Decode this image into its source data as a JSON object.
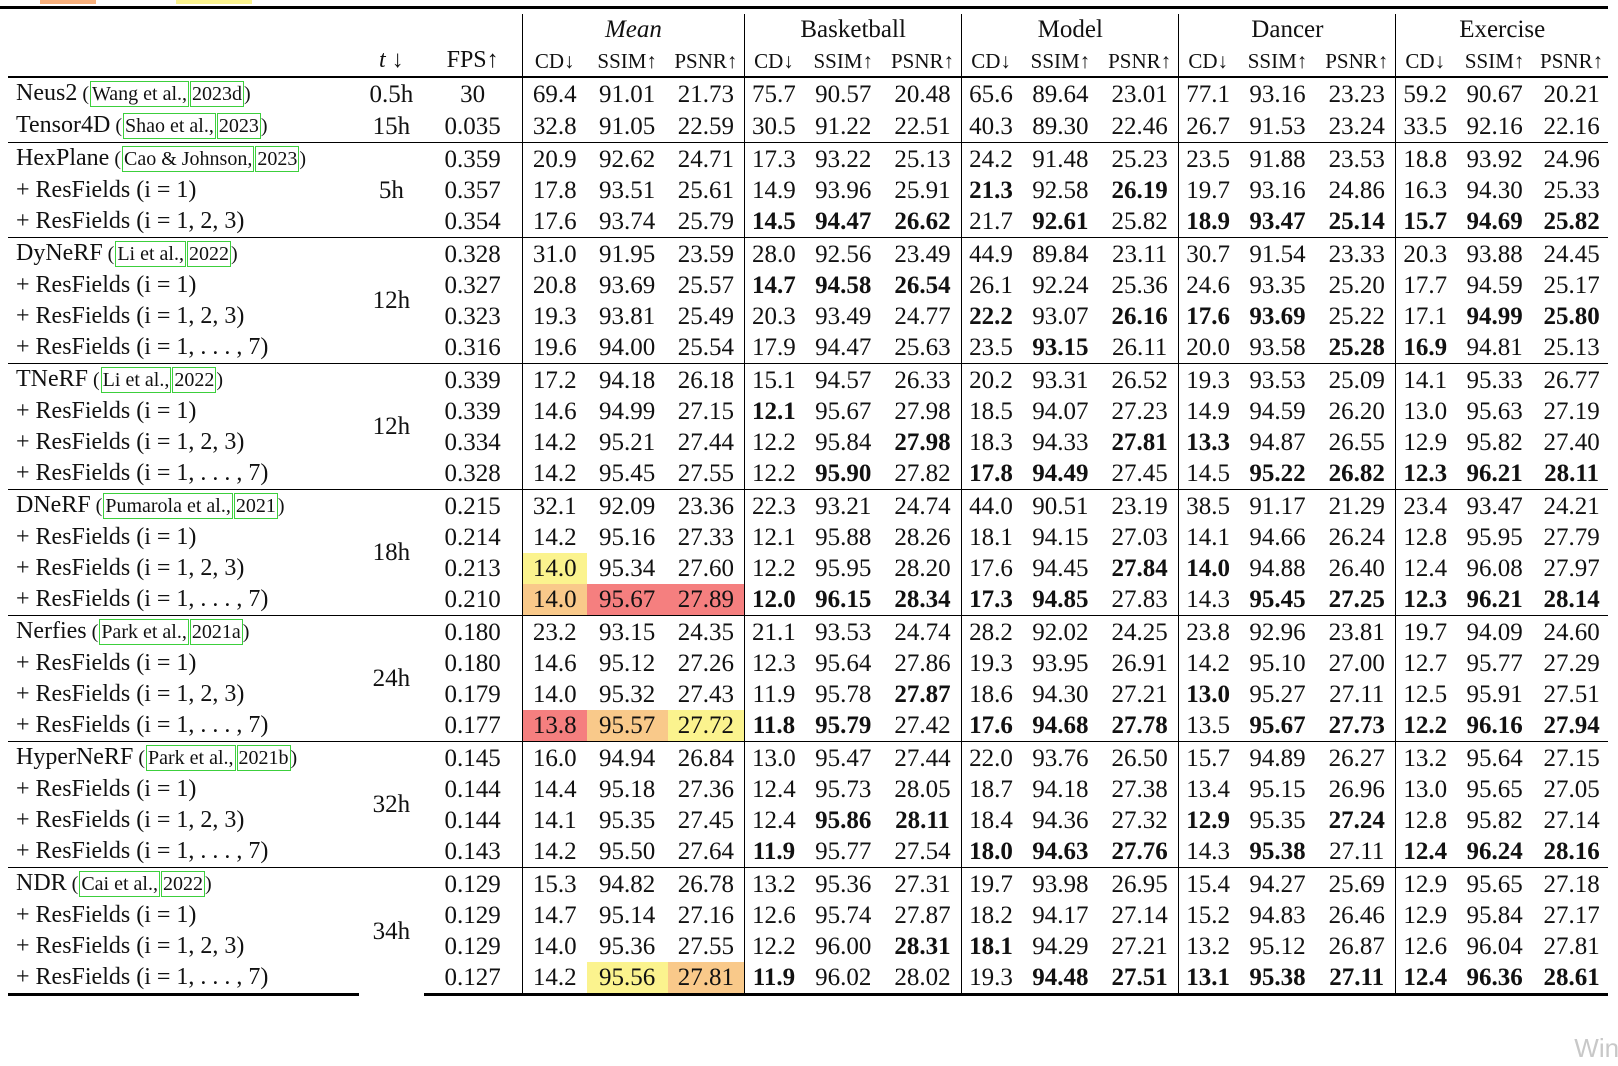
{
  "legend_colors": {
    "orange": "#f8b07c",
    "yellow": "#fbf38e",
    "red": "#f57f7f",
    "peach": "#f9c98a"
  },
  "header": {
    "col_time": "t ↓",
    "col_fps": "FPS↑",
    "groups": [
      "Mean",
      "Basketball",
      "Model",
      "Dancer",
      "Exercise"
    ],
    "metrics": [
      "CD↓",
      "SSIM↑",
      "PSNR↑"
    ]
  },
  "blocks": [
    {
      "time": "",
      "rows": [
        {
          "name": "Neus2",
          "cite": [
            "Wang et al.,",
            "2023d"
          ],
          "fps": "30",
          "vals": [
            "69.4",
            "91.01",
            "21.73",
            "75.7",
            "90.57",
            "20.48",
            "65.6",
            "89.64",
            "23.01",
            "77.1",
            "93.16",
            "23.23",
            "59.2",
            "90.67",
            "20.21"
          ],
          "bold": [],
          "hl": {}
        },
        {
          "name": "Tensor4D",
          "cite": [
            "Shao et al.,",
            "2023"
          ],
          "fps": "0.035",
          "vals": [
            "32.8",
            "91.05",
            "22.59",
            "30.5",
            "91.22",
            "22.51",
            "40.3",
            "89.30",
            "22.46",
            "26.7",
            "91.53",
            "23.24",
            "33.5",
            "92.16",
            "22.16"
          ],
          "bold": [],
          "hl": {}
        }
      ],
      "times": [
        "0.5h",
        "15h"
      ]
    },
    {
      "time": "5h",
      "rows": [
        {
          "name": "HexPlane",
          "cite": [
            "Cao & Johnson,",
            "2023"
          ],
          "fps": "0.359",
          "vals": [
            "20.9",
            "92.62",
            "24.71",
            "17.3",
            "93.22",
            "25.13",
            "24.2",
            "91.48",
            "25.23",
            "23.5",
            "91.88",
            "23.53",
            "18.8",
            "93.92",
            "24.96"
          ],
          "bold": [],
          "hl": {}
        },
        {
          "name": "+ ResFields (i = 1)",
          "cite": [],
          "fps": "0.357",
          "vals": [
            "17.8",
            "93.51",
            "25.61",
            "14.9",
            "93.96",
            "25.91",
            "21.3",
            "92.58",
            "26.19",
            "19.7",
            "93.16",
            "24.86",
            "16.3",
            "94.30",
            "25.33"
          ],
          "bold": [
            6,
            8
          ],
          "hl": {}
        },
        {
          "name": "+ ResFields (i = 1, 2, 3)",
          "cite": [],
          "fps": "0.354",
          "vals": [
            "17.6",
            "93.74",
            "25.79",
            "14.5",
            "94.47",
            "26.62",
            "21.7",
            "92.61",
            "25.82",
            "18.9",
            "93.47",
            "25.14",
            "15.7",
            "94.69",
            "25.82"
          ],
          "bold": [
            3,
            4,
            5,
            7,
            9,
            10,
            11,
            12,
            13,
            14
          ],
          "hl": {}
        }
      ]
    },
    {
      "time": "12h",
      "rows": [
        {
          "name": "DyNeRF",
          "cite": [
            "Li et al.,",
            "2022"
          ],
          "fps": "0.328",
          "vals": [
            "31.0",
            "91.95",
            "23.59",
            "28.0",
            "92.56",
            "23.49",
            "44.9",
            "89.84",
            "23.11",
            "30.7",
            "91.54",
            "23.33",
            "20.3",
            "93.88",
            "24.45"
          ],
          "bold": [],
          "hl": {}
        },
        {
          "name": "+ ResFields (i = 1)",
          "cite": [],
          "fps": "0.327",
          "vals": [
            "20.8",
            "93.69",
            "25.57",
            "14.7",
            "94.58",
            "26.54",
            "26.1",
            "92.24",
            "25.36",
            "24.6",
            "93.35",
            "25.20",
            "17.7",
            "94.59",
            "25.17"
          ],
          "bold": [
            3,
            4,
            5
          ],
          "hl": {}
        },
        {
          "name": "+ ResFields (i = 1, 2, 3)",
          "cite": [],
          "fps": "0.323",
          "vals": [
            "19.3",
            "93.81",
            "25.49",
            "20.3",
            "93.49",
            "24.77",
            "22.2",
            "93.07",
            "26.16",
            "17.6",
            "93.69",
            "25.22",
            "17.1",
            "94.99",
            "25.80"
          ],
          "bold": [
            6,
            8,
            9,
            10,
            13,
            14
          ],
          "hl": {}
        },
        {
          "name": "+ ResFields (i = 1, . . . , 7)",
          "cite": [],
          "fps": "0.316",
          "vals": [
            "19.6",
            "94.00",
            "25.54",
            "17.9",
            "94.47",
            "25.63",
            "23.5",
            "93.15",
            "26.11",
            "20.0",
            "93.58",
            "25.28",
            "16.9",
            "94.81",
            "25.13"
          ],
          "bold": [
            7,
            11,
            12
          ],
          "hl": {}
        }
      ]
    },
    {
      "time": "12h",
      "rows": [
        {
          "name": "TNeRF",
          "cite": [
            "Li et al.,",
            "2022"
          ],
          "fps": "0.339",
          "vals": [
            "17.2",
            "94.18",
            "26.18",
            "15.1",
            "94.57",
            "26.33",
            "20.2",
            "93.31",
            "26.52",
            "19.3",
            "93.53",
            "25.09",
            "14.1",
            "95.33",
            "26.77"
          ],
          "bold": [],
          "hl": {}
        },
        {
          "name": "+ ResFields (i = 1)",
          "cite": [],
          "fps": "0.339",
          "vals": [
            "14.6",
            "94.99",
            "27.15",
            "12.1",
            "95.67",
            "27.98",
            "18.5",
            "94.07",
            "27.23",
            "14.9",
            "94.59",
            "26.20",
            "13.0",
            "95.63",
            "27.19"
          ],
          "bold": [
            3
          ],
          "hl": {}
        },
        {
          "name": "+ ResFields (i = 1, 2, 3)",
          "cite": [],
          "fps": "0.334",
          "vals": [
            "14.2",
            "95.21",
            "27.44",
            "12.2",
            "95.84",
            "27.98",
            "18.3",
            "94.33",
            "27.81",
            "13.3",
            "94.87",
            "26.55",
            "12.9",
            "95.82",
            "27.40"
          ],
          "bold": [
            5,
            8,
            9
          ],
          "hl": {}
        },
        {
          "name": "+ ResFields (i = 1, . . . , 7)",
          "cite": [],
          "fps": "0.328",
          "vals": [
            "14.2",
            "95.45",
            "27.55",
            "12.2",
            "95.90",
            "27.82",
            "17.8",
            "94.49",
            "27.45",
            "14.5",
            "95.22",
            "26.82",
            "12.3",
            "96.21",
            "28.11"
          ],
          "bold": [
            4,
            6,
            7,
            10,
            11,
            12,
            13,
            14
          ],
          "hl": {}
        }
      ]
    },
    {
      "time": "18h",
      "rows": [
        {
          "name": "DNeRF",
          "cite": [
            "Pumarola et al.,",
            "2021"
          ],
          "fps": "0.215",
          "vals": [
            "32.1",
            "92.09",
            "23.36",
            "22.3",
            "93.21",
            "24.74",
            "44.0",
            "90.51",
            "23.19",
            "38.5",
            "91.17",
            "21.29",
            "23.4",
            "93.47",
            "24.21"
          ],
          "bold": [],
          "hl": {}
        },
        {
          "name": "+ ResFields (i = 1)",
          "cite": [],
          "fps": "0.214",
          "vals": [
            "14.2",
            "95.16",
            "27.33",
            "12.1",
            "95.88",
            "28.26",
            "18.1",
            "94.15",
            "27.03",
            "14.1",
            "94.66",
            "26.24",
            "12.8",
            "95.95",
            "27.79"
          ],
          "bold": [],
          "hl": {}
        },
        {
          "name": "+ ResFields (i = 1, 2, 3)",
          "cite": [],
          "fps": "0.213",
          "vals": [
            "14.0",
            "95.34",
            "27.60",
            "12.2",
            "95.95",
            "28.20",
            "17.6",
            "94.45",
            "27.84",
            "14.0",
            "94.88",
            "26.40",
            "12.4",
            "96.08",
            "27.97"
          ],
          "bold": [
            8,
            9
          ],
          "hl": {
            "0": "yellow"
          }
        },
        {
          "name": "+ ResFields (i = 1, . . . , 7)",
          "cite": [],
          "fps": "0.210",
          "vals": [
            "14.0",
            "95.67",
            "27.89",
            "12.0",
            "96.15",
            "28.34",
            "17.3",
            "94.85",
            "27.83",
            "14.3",
            "95.45",
            "27.25",
            "12.3",
            "96.21",
            "28.14"
          ],
          "bold": [
            3,
            4,
            5,
            6,
            7,
            10,
            11,
            12,
            13,
            14
          ],
          "hl": {
            "0": "peach",
            "1": "red",
            "2": "red"
          }
        }
      ]
    },
    {
      "time": "24h",
      "rows": [
        {
          "name": "Nerfies",
          "cite": [
            "Park et al.,",
            "2021a"
          ],
          "fps": "0.180",
          "vals": [
            "23.2",
            "93.15",
            "24.35",
            "21.1",
            "93.53",
            "24.74",
            "28.2",
            "92.02",
            "24.25",
            "23.8",
            "92.96",
            "23.81",
            "19.7",
            "94.09",
            "24.60"
          ],
          "bold": [],
          "hl": {}
        },
        {
          "name": "+ ResFields (i = 1)",
          "cite": [],
          "fps": "0.180",
          "vals": [
            "14.6",
            "95.12",
            "27.26",
            "12.3",
            "95.64",
            "27.86",
            "19.3",
            "93.95",
            "26.91",
            "14.2",
            "95.10",
            "27.00",
            "12.7",
            "95.77",
            "27.29"
          ],
          "bold": [],
          "hl": {}
        },
        {
          "name": "+ ResFields (i = 1, 2, 3)",
          "cite": [],
          "fps": "0.179",
          "vals": [
            "14.0",
            "95.32",
            "27.43",
            "11.9",
            "95.78",
            "27.87",
            "18.6",
            "94.30",
            "27.21",
            "13.0",
            "95.27",
            "27.11",
            "12.5",
            "95.91",
            "27.51"
          ],
          "bold": [
            5,
            9
          ],
          "hl": {}
        },
        {
          "name": "+ ResFields (i = 1, . . . , 7)",
          "cite": [],
          "fps": "0.177",
          "vals": [
            "13.8",
            "95.57",
            "27.72",
            "11.8",
            "95.79",
            "27.42",
            "17.6",
            "94.68",
            "27.78",
            "13.5",
            "95.67",
            "27.73",
            "12.2",
            "96.16",
            "27.94"
          ],
          "bold": [
            3,
            4,
            6,
            7,
            8,
            10,
            11,
            12,
            13,
            14
          ],
          "hl": {
            "0": "red",
            "1": "peach",
            "2": "yellow"
          }
        }
      ]
    },
    {
      "time": "32h",
      "rows": [
        {
          "name": "HyperNeRF",
          "cite": [
            "Park et al.,",
            "2021b"
          ],
          "fps": "0.145",
          "vals": [
            "16.0",
            "94.94",
            "26.84",
            "13.0",
            "95.47",
            "27.44",
            "22.0",
            "93.76",
            "26.50",
            "15.7",
            "94.89",
            "26.27",
            "13.2",
            "95.64",
            "27.15"
          ],
          "bold": [],
          "hl": {}
        },
        {
          "name": "+ ResFields (i = 1)",
          "cite": [],
          "fps": "0.144",
          "vals": [
            "14.4",
            "95.18",
            "27.36",
            "12.4",
            "95.73",
            "28.05",
            "18.7",
            "94.18",
            "27.38",
            "13.4",
            "95.15",
            "26.96",
            "13.0",
            "95.65",
            "27.05"
          ],
          "bold": [],
          "hl": {}
        },
        {
          "name": "+ ResFields (i = 1, 2, 3)",
          "cite": [],
          "fps": "0.144",
          "vals": [
            "14.1",
            "95.35",
            "27.45",
            "12.4",
            "95.86",
            "28.11",
            "18.4",
            "94.36",
            "27.32",
            "12.9",
            "95.35",
            "27.24",
            "12.8",
            "95.82",
            "27.14"
          ],
          "bold": [
            4,
            5,
            9,
            11
          ],
          "hl": {}
        },
        {
          "name": "+ ResFields (i = 1, . . . , 7)",
          "cite": [],
          "fps": "0.143",
          "vals": [
            "14.2",
            "95.50",
            "27.64",
            "11.9",
            "95.77",
            "27.54",
            "18.0",
            "94.63",
            "27.76",
            "14.3",
            "95.38",
            "27.11",
            "12.4",
            "96.24",
            "28.16"
          ],
          "bold": [
            3,
            6,
            7,
            8,
            10,
            12,
            13,
            14
          ],
          "hl": {}
        }
      ]
    },
    {
      "time": "34h",
      "rows": [
        {
          "name": "NDR",
          "cite": [
            "Cai et al.,",
            "2022"
          ],
          "fps": "0.129",
          "vals": [
            "15.3",
            "94.82",
            "26.78",
            "13.2",
            "95.36",
            "27.31",
            "19.7",
            "93.98",
            "26.95",
            "15.4",
            "94.27",
            "25.69",
            "12.9",
            "95.65",
            "27.18"
          ],
          "bold": [],
          "hl": {}
        },
        {
          "name": "+ ResFields (i = 1)",
          "cite": [],
          "fps": "0.129",
          "vals": [
            "14.7",
            "95.14",
            "27.16",
            "12.6",
            "95.74",
            "27.87",
            "18.2",
            "94.17",
            "27.14",
            "15.2",
            "94.83",
            "26.46",
            "12.9",
            "95.84",
            "27.17"
          ],
          "bold": [],
          "hl": {}
        },
        {
          "name": "+ ResFields (i = 1, 2, 3)",
          "cite": [],
          "fps": "0.129",
          "vals": [
            "14.0",
            "95.36",
            "27.55",
            "12.2",
            "96.00",
            "28.31",
            "18.1",
            "94.29",
            "27.21",
            "13.2",
            "95.12",
            "26.87",
            "12.6",
            "96.04",
            "27.81"
          ],
          "bold": [
            5,
            6
          ],
          "hl": {}
        },
        {
          "name": "+ ResFields (i = 1, . . . , 7)",
          "cite": [],
          "fps": "0.127",
          "vals": [
            "14.2",
            "95.56",
            "27.81",
            "11.9",
            "96.02",
            "28.02",
            "19.3",
            "94.48",
            "27.51",
            "13.1",
            "95.38",
            "27.11",
            "12.4",
            "96.36",
            "28.61"
          ],
          "bold": [
            3,
            7,
            8,
            9,
            10,
            11,
            12,
            13,
            14
          ],
          "hl": {
            "1": "yellow",
            "2": "peach"
          }
        }
      ]
    }
  ],
  "watermark": "Windo"
}
